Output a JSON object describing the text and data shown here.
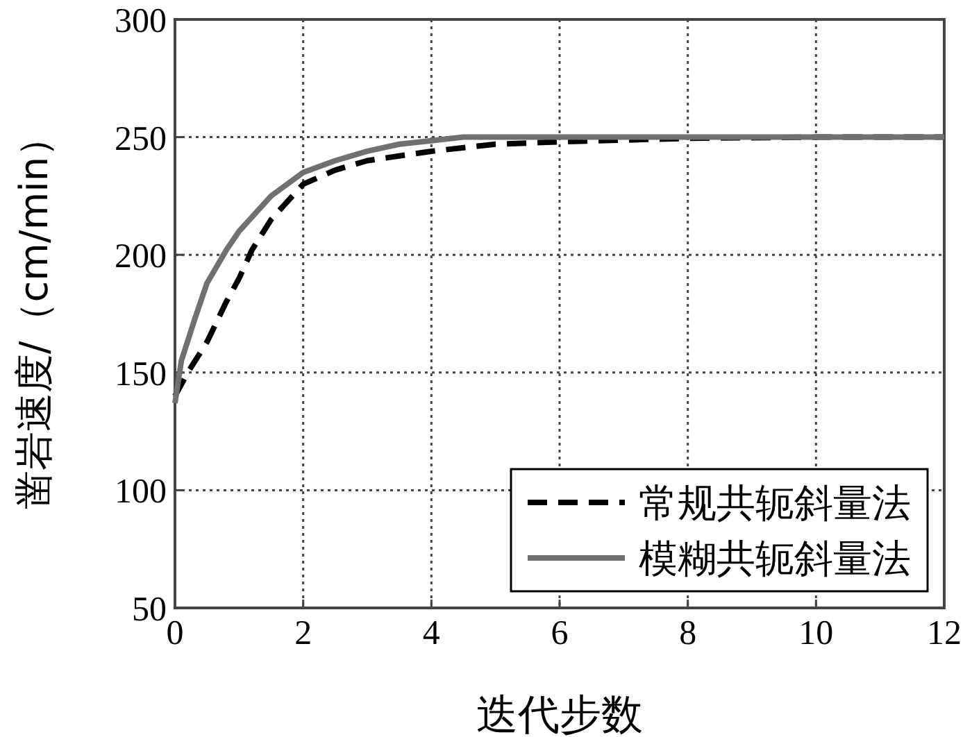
{
  "chart_data": {
    "type": "line",
    "xlabel": "迭代步数",
    "ylabel": "凿岩速度/（cm/min）",
    "xlim": [
      0,
      12
    ],
    "xticks": [
      0,
      2,
      4,
      6,
      8,
      10,
      12
    ],
    "ylim": [
      50,
      300
    ],
    "yticks": [
      50,
      100,
      150,
      200,
      250,
      300
    ],
    "grid": true,
    "legend": "bottom right",
    "series": [
      {
        "name": "常规共轭斜量法",
        "color": "#000000",
        "line_style": "dashed",
        "x": [
          0,
          0.2,
          0.5,
          0.8,
          1.0,
          1.2,
          1.5,
          2,
          2.5,
          3,
          4,
          5,
          6,
          8,
          10,
          12
        ],
        "values": [
          140,
          150,
          163,
          180,
          190,
          202,
          215,
          230,
          236,
          240,
          244,
          247,
          248,
          249.5,
          250,
          250
        ]
      },
      {
        "name": "模糊共轭斜量法",
        "color": "#707070",
        "line_style": "solid",
        "x": [
          0,
          0.1,
          0.3,
          0.5,
          0.8,
          1.0,
          1.5,
          2,
          2.5,
          3,
          3.5,
          4,
          4.5,
          12
        ],
        "values": [
          137,
          155,
          172,
          188,
          202,
          210,
          225,
          235,
          240,
          244,
          247,
          248.5,
          250,
          250
        ]
      }
    ]
  }
}
